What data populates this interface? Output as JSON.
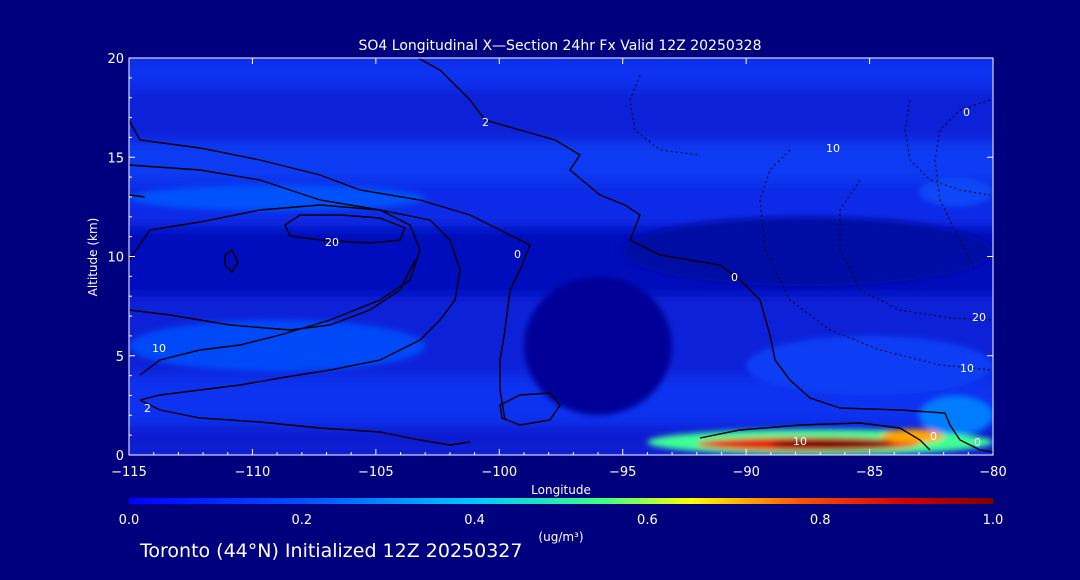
{
  "chart_data": {
    "type": "heatmap",
    "title": "SO4 Longitudinal X—Section 24hr  Fx Valid 12Z 20250328",
    "xlabel": "Longitude",
    "ylabel": "Altitude (km)",
    "xlim": [
      -115,
      -80
    ],
    "ylim": [
      0,
      20
    ],
    "x_ticks": [
      -115,
      -110,
      -105,
      -100,
      -95,
      -90,
      -85,
      -80
    ],
    "x_tick_labels": [
      "−115",
      "−110",
      "−105",
      "−100",
      "−95",
      "−90",
      "−85",
      "−80"
    ],
    "y_ticks": [
      0,
      5,
      10,
      15,
      20
    ],
    "y_tick_labels": [
      "0",
      "5",
      "10",
      "15",
      "20"
    ],
    "colorbar": {
      "min": 0.0,
      "max": 1.0,
      "ticks": [
        0.0,
        0.2,
        0.4,
        0.6,
        0.8,
        1.0
      ],
      "tick_labels": [
        "0.0",
        "0.2",
        "0.4",
        "0.6",
        "0.8",
        "1.0"
      ],
      "units": "(ug/m³)",
      "colors": [
        "#0000ff",
        "#00bfff",
        "#00ff80",
        "#ffff00",
        "#ff3000",
        "#7f0000"
      ]
    },
    "contour_labels": [
      "2",
      "20",
      "10",
      "0",
      "0",
      "10",
      "0",
      "10",
      "20",
      "10",
      "2",
      "0",
      "0"
    ],
    "field_bands": [
      {
        "y": [
          18.5,
          20
        ],
        "value": 0.1
      },
      {
        "y": [
          15.8,
          18.5
        ],
        "value": 0.07
      },
      {
        "y": [
          13.8,
          15.8
        ],
        "value": 0.12
      },
      {
        "y": [
          11.5,
          13.8
        ],
        "value": 0.09
      },
      {
        "y": [
          8.0,
          11.5
        ],
        "value": 0.04
      },
      {
        "y": [
          4.0,
          8.0
        ],
        "value": 0.07
      },
      {
        "y": [
          1.5,
          4.0
        ],
        "value": 0.1
      },
      {
        "y": [
          0,
          1.5
        ],
        "value": 0.06
      }
    ],
    "field_patches": [
      {
        "x": [
          -115,
          -103
        ],
        "y": [
          12.3,
          13.6
        ],
        "value": 0.18
      },
      {
        "x": [
          -83,
          -80
        ],
        "y": [
          12.5,
          14
        ],
        "value": 0.15
      },
      {
        "x": [
          -95,
          -80
        ],
        "y": [
          8.5,
          12
        ],
        "value": 0.02
      },
      {
        "x": [
          -99,
          -93
        ],
        "y": [
          2,
          9
        ],
        "value": 0.01
      },
      {
        "x": [
          -115,
          -103
        ],
        "y": [
          4.2,
          6.8
        ],
        "value": 0.16
      },
      {
        "x": [
          -90,
          -80
        ],
        "y": [
          3,
          6
        ],
        "value": 0.13
      },
      {
        "x": [
          -83,
          -80
        ],
        "y": [
          1,
          3
        ],
        "value": 0.25
      },
      {
        "x": [
          -94,
          -80
        ],
        "y": [
          0,
          1.3
        ],
        "value": 0.5
      },
      {
        "x": [
          -92,
          -83
        ],
        "y": [
          0.2,
          0.9
        ],
        "value": 0.85
      },
      {
        "x": [
          -89,
          -84
        ],
        "y": [
          0.3,
          0.8
        ],
        "value": 1.0
      },
      {
        "x": [
          -84.5,
          -82
        ],
        "y": [
          0.6,
          1.3
        ],
        "value": 0.7
      }
    ]
  },
  "footer": {
    "caption": "Toronto (44°N) Initialized 12Z 20250327"
  }
}
